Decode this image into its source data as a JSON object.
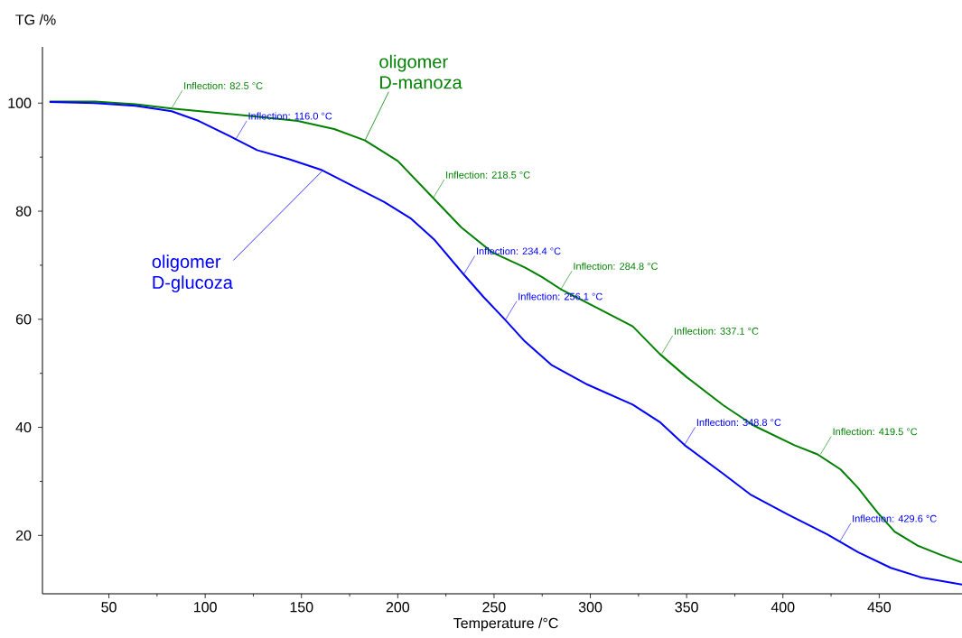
{
  "chart_data": {
    "type": "line",
    "xlabel": "Temperature /°C",
    "ylabel": "TG /%",
    "xlim": [
      15.5,
      493
    ],
    "ylim": [
      9.2,
      110.4
    ],
    "xticks": [
      50,
      100,
      150,
      200,
      250,
      300,
      350,
      400,
      450
    ],
    "yticks": [
      20,
      40,
      60,
      80,
      100
    ],
    "series": [
      {
        "name": "oligomer D-manoza",
        "color": "#008000",
        "x": [
          19.2,
          42.7,
          63.8,
          82.6,
          106,
          127,
          148,
          167,
          183,
          200,
          218,
          233,
          249,
          266,
          275,
          284.5,
          303,
          322,
          336,
          350,
          369,
          385,
          406,
          418,
          430,
          439,
          449,
          458,
          470,
          482,
          493
        ],
        "values": [
          100.3,
          100.3,
          99.8,
          99.0,
          98.2,
          97.5,
          96.7,
          95.2,
          93.1,
          89.3,
          82.6,
          77.0,
          72.4,
          69.6,
          67.8,
          65.6,
          62.2,
          58.7,
          53.6,
          49.3,
          44.1,
          40.3,
          36.7,
          35.0,
          32.2,
          28.8,
          24.3,
          20.7,
          18.1,
          16.4,
          15.0
        ]
      },
      {
        "name": "oligomer D-glucoza",
        "color": "#0000ff",
        "x": [
          19.2,
          42.7,
          63.8,
          82.6,
          96.7,
          115.5,
          127,
          143.7,
          160,
          176.5,
          193,
          207,
          218.8,
          234,
          244.6,
          255,
          266,
          280,
          298.6,
          322,
          336,
          349,
          369,
          383,
          403,
          423,
          439,
          456,
          472,
          493
        ],
        "values": [
          100.2,
          100.0,
          99.5,
          98.5,
          96.7,
          93.4,
          91.3,
          89.6,
          87.7,
          84.7,
          81.7,
          78.6,
          74.8,
          68.4,
          64.1,
          60.2,
          55.9,
          51.5,
          47.9,
          44.2,
          41.0,
          36.7,
          31.4,
          27.6,
          23.8,
          20.2,
          16.9,
          14.0,
          12.2,
          10.9
        ]
      }
    ],
    "annotations": [
      {
        "text": "Inflection: 82.5 °C",
        "x": 82.5,
        "y": 99.0
      },
      {
        "text": "Inflection: 116.0 °C",
        "x": 116.0,
        "y": 93.4
      },
      {
        "text": "Inflection: 218.5 °C",
        "x": 218.5,
        "y": 82.5
      },
      {
        "text": "Inflection: 234.4 °C",
        "x": 234.4,
        "y": 68.4
      },
      {
        "text": "Inflection: 256.1 °C",
        "x": 256.1,
        "y": 60.0
      },
      {
        "text": "Inflection: 284.8 °C",
        "x": 284.8,
        "y": 65.6
      },
      {
        "text": "Inflection: 337.1 °C",
        "x": 337.1,
        "y": 53.6
      },
      {
        "text": "Inflection: 348.8 °C",
        "x": 348.8,
        "y": 36.7
      },
      {
        "text": "Inflection: 419.5 °C",
        "x": 419.5,
        "y": 35.0
      },
      {
        "text": "Inflection: 429.6 °C",
        "x": 429.6,
        "y": 18.9
      }
    ]
  }
}
